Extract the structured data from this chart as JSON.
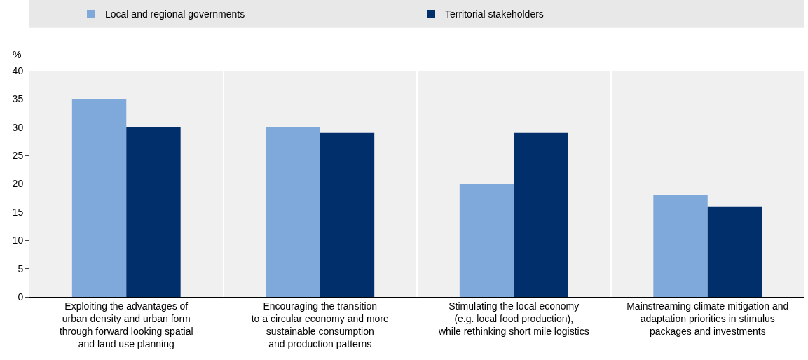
{
  "chart_data": {
    "type": "bar",
    "ylabel": "%",
    "categories": [
      "Exploiting the advantages of\nurban density and urban form\nthrough forward looking spatial\nand land use planning",
      "Encouraging the transition\nto a circular economy and more\nsustainable consumption\nand production patterns",
      "Stimulating the local economy\n(e.g. local food production),\nwhile rethinking short mile logistics",
      "Mainstreaming climate mitigation and\nadaptation priorities in stimulus\npackages and investments"
    ],
    "series": [
      {
        "name": "Local and regional governments",
        "color": "#7fa9da",
        "values": [
          35,
          30,
          20,
          18
        ]
      },
      {
        "name": "Territorial stakeholders",
        "color": "#002f6c",
        "values": [
          30,
          29,
          29,
          16
        ]
      }
    ],
    "ylim": [
      0,
      40
    ],
    "yticks": [
      0,
      5,
      10,
      15,
      20,
      25,
      30,
      35,
      40
    ],
    "grid": "x",
    "legend": "top"
  }
}
